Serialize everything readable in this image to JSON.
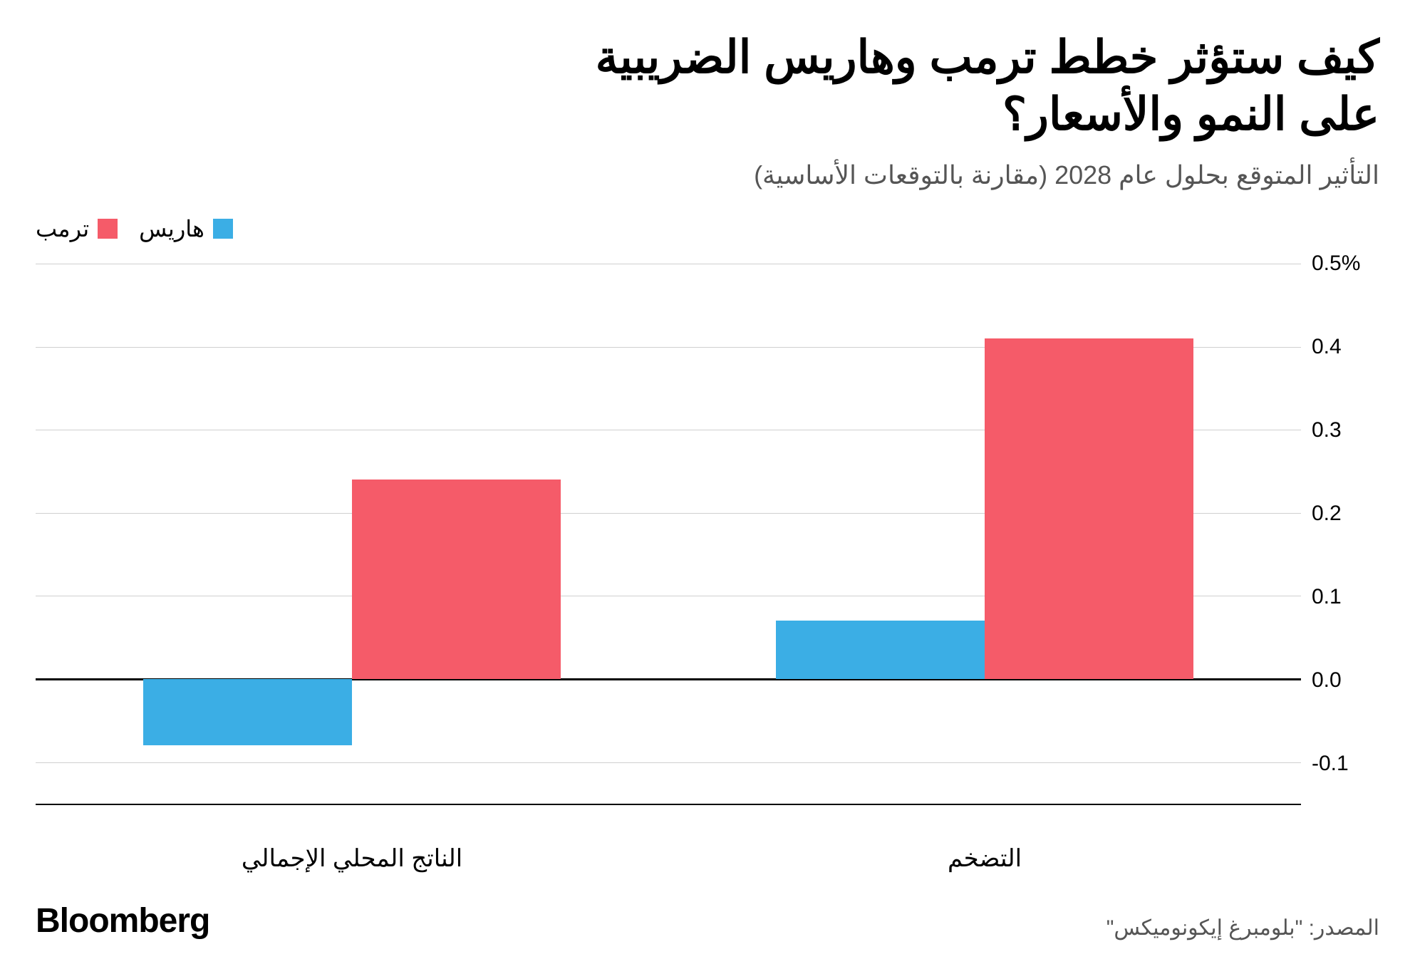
{
  "title_line1": "كيف ستؤثر خطط ترمب وهاريس الضريبية",
  "title_line2": "على النمو والأسعار؟",
  "subtitle": "التأثير المتوقع بحلول عام 2028 (مقارنة بالتوقعات الأساسية)",
  "title_fontsize": 64,
  "subtitle_fontsize": 36,
  "legend": {
    "items": [
      {
        "label": "هاريس",
        "color": "#3baee5"
      },
      {
        "label": "ترمب",
        "color": "#f55b69"
      }
    ],
    "fontsize": 32
  },
  "chart": {
    "type": "bar",
    "ymin": -0.15,
    "ymax": 0.5,
    "yticks": [
      -0.1,
      0.0,
      0.1,
      0.2,
      0.3,
      0.4,
      0.5
    ],
    "ytick_labels": [
      "-0.1",
      "0.0",
      "0.1",
      "0.2",
      "0.3",
      "0.4",
      "0.5%"
    ],
    "ytick_fontsize": 30,
    "gridline_color": "#d0d0d0",
    "zero_line_color": "#000000",
    "background_color": "#ffffff",
    "categories": [
      {
        "label": "الناتج المحلي الإجمالي",
        "bars": [
          {
            "series": "هاريس",
            "value": -0.08,
            "color": "#3baee5"
          },
          {
            "series": "ترمب",
            "value": 0.24,
            "color": "#f55b69"
          }
        ]
      },
      {
        "label": "التضخم",
        "bars": [
          {
            "series": "هاريس",
            "value": 0.07,
            "color": "#3baee5"
          },
          {
            "series": "ترمب",
            "value": 0.41,
            "color": "#f55b69"
          }
        ]
      }
    ],
    "xlabel_fontsize": 34,
    "bar_width_pct": 33
  },
  "footer": {
    "brand": "Bloomberg",
    "brand_fontsize": 48,
    "source": "المصدر:  \"بلومبرغ إيكونوميكس\"",
    "source_fontsize": 30
  }
}
